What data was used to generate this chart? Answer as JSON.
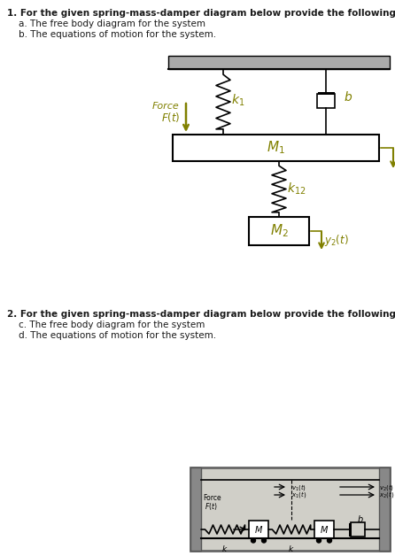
{
  "title1": "1. For the given spring-mass-damper diagram below provide the following:",
  "sub1a": "    a. The free body diagram for the system",
  "sub1b": "    b. The equations of motion for the system.",
  "title2": "2. For the given spring-mass-damper diagram below provide the following:",
  "sub2c": "    c. The free body diagram for the system",
  "sub2d": "    d. The equations of motion for the system.",
  "text_color": "#1a1a1a",
  "olive_color": "#808000",
  "bg_color": "#ffffff",
  "wall_color": "#aaaaaa",
  "diag2_bg": "#d0cfc8"
}
